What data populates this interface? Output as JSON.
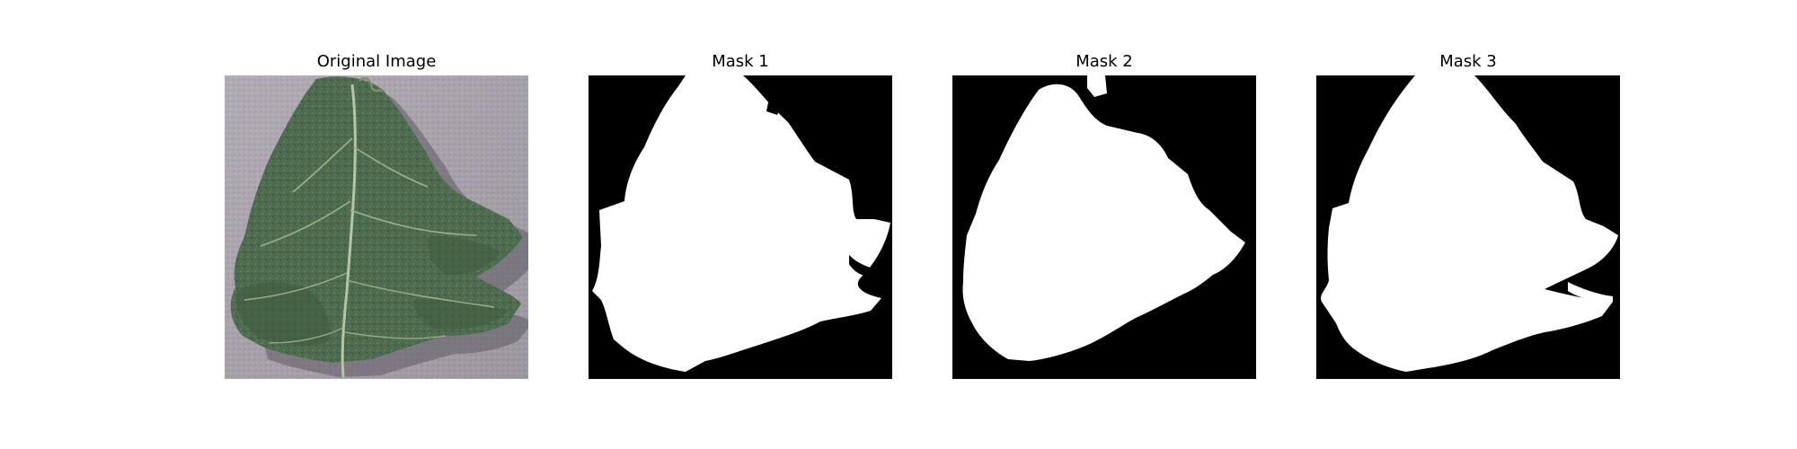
{
  "figure": {
    "panels": [
      {
        "title": "Original Image",
        "kind": "photo",
        "subject": "leaf-photo"
      },
      {
        "title": "Mask 1",
        "kind": "mask"
      },
      {
        "title": "Mask 2",
        "kind": "mask"
      },
      {
        "title": "Mask 3",
        "kind": "mask"
      }
    ],
    "colors": {
      "background": "#ffffff",
      "mask_background": "#000000",
      "mask_foreground": "#ffffff",
      "photo_background": "#a8a2ac",
      "leaf_green": "#4f6e4f",
      "leaf_dark": "#2f452f",
      "vein": "#b9c6a8"
    }
  }
}
